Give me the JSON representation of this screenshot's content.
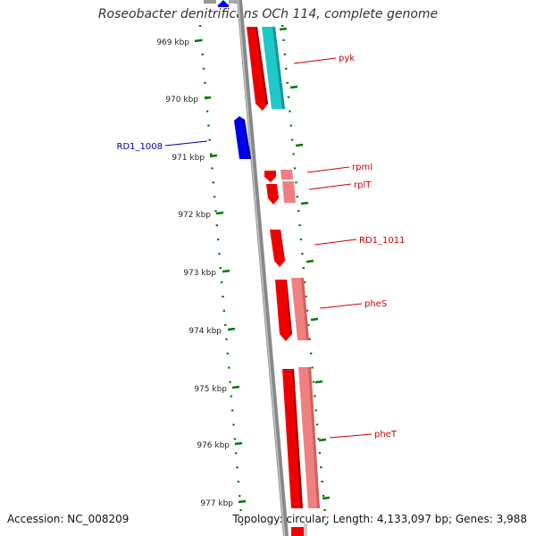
{
  "title": "Roseobacter denitrificans OCh 114, complete genome",
  "footer": {
    "accession": "Accession: NC_008209",
    "stats": "Topology: circular; Length: 4,133,097 bp; Genes: 3,988"
  },
  "ticks": [
    "969 kbp",
    "970 kbp",
    "971 kbp",
    "972 kbp",
    "973 kbp",
    "974 kbp",
    "975 kbp",
    "976 kbp",
    "977 kbp"
  ],
  "genes": [
    {
      "name": "pyk",
      "strand": "+"
    },
    {
      "name": "RD1_1008",
      "strand": "-"
    },
    {
      "name": "rpmI",
      "strand": "+"
    },
    {
      "name": "rplT",
      "strand": "+"
    },
    {
      "name": "RD1_1011",
      "strand": "+"
    },
    {
      "name": "pheS",
      "strand": "+"
    },
    {
      "name": "pheT",
      "strand": "+"
    }
  ],
  "colors": {
    "forward_cds": "#ff0000",
    "forward_light": "#f08080",
    "forward_teal": "#20c8c8",
    "reverse_cds": "#0000ee",
    "backbone": "#808080",
    "tick": "#007700",
    "gene_label_fwd": "#cc0000",
    "gene_label_rev": "#0000aa"
  }
}
